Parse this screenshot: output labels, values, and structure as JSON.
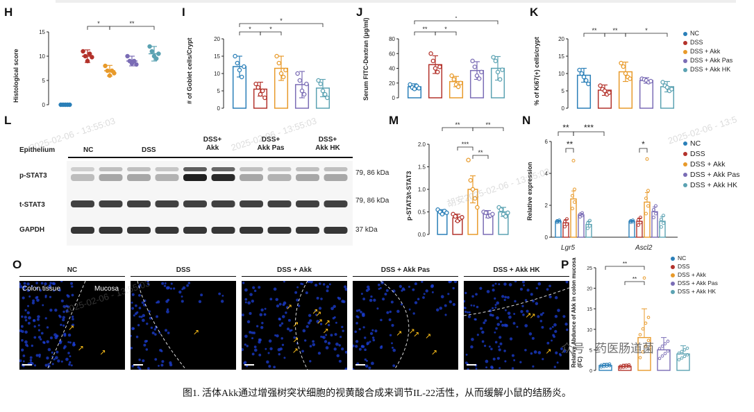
{
  "colors": {
    "nc": "#2a7fb8",
    "dss": "#b3322b",
    "akk": "#e89a2a",
    "pas": "#7a6cb5",
    "hk": "#5ba2b2"
  },
  "legend": [
    "NC",
    "DSS",
    "DSS + Akk",
    "DSS + Akk Pas",
    "DSS + Akk HK"
  ],
  "letters": {
    "H": "H",
    "I": "I",
    "J": "J",
    "K": "K",
    "L": "L",
    "M": "M",
    "N": "N",
    "O": "O",
    "P": "P"
  },
  "chart_data": [
    {
      "id": "H",
      "type": "scatter",
      "ylabel": "Histological score",
      "ylim": [
        0,
        15
      ],
      "yticks": [
        "0",
        "5",
        "10",
        "15"
      ],
      "groups": [
        {
          "mean": 0,
          "sd": 0,
          "pts": [
            0,
            0,
            0,
            0,
            0
          ]
        },
        {
          "mean": 10,
          "sd": 1.3,
          "pts": [
            11,
            10,
            9,
            10.5,
            9.8
          ]
        },
        {
          "mean": 7,
          "sd": 1.1,
          "pts": [
            8,
            7,
            6,
            7,
            6.5
          ]
        },
        {
          "mean": 9,
          "sd": 1,
          "pts": [
            10,
            9,
            8.5,
            9,
            8.3
          ]
        },
        {
          "mean": 10.5,
          "sd": 1.5,
          "pts": [
            12,
            11,
            10,
            9.5,
            10.5
          ]
        }
      ],
      "sig": [
        {
          "a": 1,
          "b": 2,
          "t": "*"
        },
        {
          "a": 2,
          "b": 4,
          "t": "**"
        }
      ]
    },
    {
      "id": "I",
      "type": "bar",
      "ylabel": "# of Goblet cells/Crypt",
      "ylim": [
        0,
        20
      ],
      "yticks": [
        "0",
        "5",
        "10",
        "15",
        "20"
      ],
      "groups": [
        {
          "mean": 12,
          "sd": 3,
          "pts": [
            15,
            13,
            11,
            9,
            12
          ]
        },
        {
          "mean": 5.5,
          "sd": 2,
          "pts": [
            7,
            6,
            4,
            5,
            3
          ]
        },
        {
          "mean": 11.5,
          "sd": 3.5,
          "pts": [
            15,
            13,
            10,
            9,
            11
          ]
        },
        {
          "mean": 6.8,
          "sd": 3.8,
          "pts": [
            10,
            8,
            5,
            4,
            7
          ]
        },
        {
          "mean": 5.8,
          "sd": 2.5,
          "pts": [
            8,
            7,
            5,
            4,
            3
          ]
        }
      ],
      "sig": [
        {
          "a": 0,
          "b": 1,
          "t": "*"
        },
        {
          "a": 1,
          "b": 2,
          "t": "*"
        },
        {
          "a": 0,
          "b": 4,
          "t": "*"
        }
      ]
    },
    {
      "id": "J",
      "type": "bar",
      "ylabel": "Serum FITC-Dextran (μg/ml)",
      "ylim": [
        0,
        80
      ],
      "yticks": [
        "0",
        "20",
        "40",
        "60",
        "80"
      ],
      "groups": [
        {
          "mean": 15,
          "sd": 4,
          "pts": [
            18,
            14,
            12,
            16,
            13
          ]
        },
        {
          "mean": 45,
          "sd": 12,
          "pts": [
            60,
            50,
            40,
            35,
            42
          ]
        },
        {
          "mean": 22,
          "sd": 7,
          "pts": [
            30,
            25,
            18,
            15,
            20
          ]
        },
        {
          "mean": 37,
          "sd": 12,
          "pts": [
            50,
            42,
            30,
            26,
            35
          ]
        },
        {
          "mean": 40,
          "sd": 16,
          "pts": [
            55,
            50,
            35,
            25,
            38
          ]
        }
      ],
      "sig": [
        {
          "a": 0,
          "b": 1,
          "t": "**"
        },
        {
          "a": 1,
          "b": 2,
          "t": "*"
        },
        {
          "a": 0,
          "b": 4,
          "t": "*"
        }
      ]
    },
    {
      "id": "K",
      "type": "bar",
      "ylabel": "% of Ki67(+) cells/crypt",
      "ylim": [
        0,
        20
      ],
      "yticks": [
        "0",
        "5",
        "10",
        "15",
        "20"
      ],
      "groups": [
        {
          "mean": 9.5,
          "sd": 2,
          "pts": [
            11,
            10,
            9,
            8,
            7
          ]
        },
        {
          "mean": 5.2,
          "sd": 1.5,
          "pts": [
            6.5,
            5.5,
            5,
            4,
            4.5
          ]
        },
        {
          "mean": 10.5,
          "sd": 2.8,
          "pts": [
            13,
            12,
            10,
            9,
            8.5
          ]
        },
        {
          "mean": 8,
          "sd": 0.8,
          "pts": [
            8.5,
            8.3,
            8,
            7.5,
            7.8
          ]
        },
        {
          "mean": 6.2,
          "sd": 1.5,
          "pts": [
            7.5,
            6.5,
            6,
            5,
            5.5
          ]
        }
      ],
      "sig": [
        {
          "a": 0,
          "b": 1,
          "t": "**"
        },
        {
          "a": 1,
          "b": 2,
          "t": "**"
        },
        {
          "a": 2,
          "b": 4,
          "t": "*"
        }
      ]
    },
    {
      "id": "M",
      "type": "bar",
      "ylabel": "p-STAT3/t-STAT3",
      "ylim": [
        0,
        2.0
      ],
      "yticks": [
        "0.0",
        "0.5",
        "1.0",
        "1.5",
        "2.0"
      ],
      "groups": [
        {
          "mean": 0.5,
          "sd": 0.05,
          "pts": [
            0.55,
            0.5,
            0.45,
            0.52,
            0.48
          ]
        },
        {
          "mean": 0.37,
          "sd": 0.08,
          "pts": [
            0.45,
            0.4,
            0.3,
            0.35,
            0.38
          ]
        },
        {
          "mean": 1.0,
          "sd": 0.3,
          "pts": [
            1.65,
            1.2,
            1.0,
            0.8,
            0.6
          ]
        },
        {
          "mean": 0.45,
          "sd": 0.08,
          "pts": [
            0.5,
            0.48,
            0.4,
            0.42,
            0.45
          ]
        },
        {
          "mean": 0.5,
          "sd": 0.1,
          "pts": [
            0.6,
            0.55,
            0.45,
            0.4,
            0.48
          ]
        }
      ],
      "sig": [
        {
          "a": 0,
          "b": 2,
          "t": "**"
        },
        {
          "a": 2,
          "b": 4,
          "t": "**"
        },
        {
          "a": 1,
          "b": 2,
          "t": "***"
        },
        {
          "a": 2,
          "b": 3,
          "t": "**"
        }
      ]
    },
    {
      "id": "N",
      "type": "bar",
      "ylabel": "Relative expression",
      "ylim": [
        0,
        6
      ],
      "yticks": [
        "0",
        "2",
        "4",
        "6"
      ],
      "categories": [
        "Lgr5",
        "Ascl2"
      ],
      "clusters": [
        [
          {
            "mean": 1.0,
            "sd": 0.05
          },
          {
            "mean": 0.9,
            "sd": 0.2
          },
          {
            "mean": 2.4,
            "sd": 0.5
          },
          {
            "mean": 1.4,
            "sd": 0.1
          },
          {
            "mean": 0.8,
            "sd": 0.2
          }
        ],
        [
          {
            "mean": 1.0,
            "sd": 0.05
          },
          {
            "mean": 1.0,
            "sd": 0.2
          },
          {
            "mean": 2.2,
            "sd": 0.6
          },
          {
            "mean": 1.6,
            "sd": 0.3
          },
          {
            "mean": 1.0,
            "sd": 0.3
          }
        ]
      ],
      "sig": [
        {
          "t": "**"
        },
        {
          "t": "***"
        },
        {
          "t": "**"
        },
        {
          "t": "*"
        }
      ]
    },
    {
      "id": "P",
      "type": "bar",
      "ylabel": "Relative Abdunce of Akk in colon mucosa (FC)",
      "ylim": [
        0,
        25
      ],
      "yticks": [
        "0",
        "5",
        "10",
        "15",
        "20",
        "25"
      ],
      "groups": [
        {
          "mean": 1.2,
          "sd": 0.5
        },
        {
          "mean": 1.0,
          "sd": 0.5
        },
        {
          "mean": 8,
          "sd": 7
        },
        {
          "mean": 5,
          "sd": 3
        },
        {
          "mean": 4,
          "sd": 2
        }
      ],
      "sig": [
        {
          "t": "**"
        },
        {
          "t": "**"
        }
      ]
    }
  ],
  "western": {
    "columns": [
      "NC",
      "DSS",
      "DSS+\nAkk",
      "DSS+\nAkk Pas",
      "DSS+\nAkk HK"
    ],
    "header": "Epithelium",
    "rows": [
      {
        "label": "p-STAT3",
        "kda": "79, 86 kDa"
      },
      {
        "label": "t-STAT3",
        "kda": "79, 86 kDa"
      },
      {
        "label": "GAPDH",
        "kda": "37 kDa"
      }
    ]
  },
  "images": {
    "titles": [
      "NC",
      "DSS",
      "DSS + Akk",
      "DSS + Akk Pas",
      "DSS + Akk HK"
    ],
    "colon_tissue": "Colon tissue",
    "mucosa": "Mucosa"
  },
  "nlabels": {
    "lgr5": "Lgr5",
    "ascl2": "Ascl2"
  },
  "brand": "众号 · 药医肠道菌",
  "watermarks": [
    "2025-02-06 - 13:55:03",
    "2025-02-06 - 13:55:03",
    "2025-02-06 - 13:55:03",
    "胡安2025-02-06 - 13:55:03",
    "2025-02-06 - 13:5"
  ],
  "caption": "图1. 活体Akk通过增强树突状细胞的视黄酸合成来调节IL-22活性，从而缓解小鼠的结肠炎。"
}
